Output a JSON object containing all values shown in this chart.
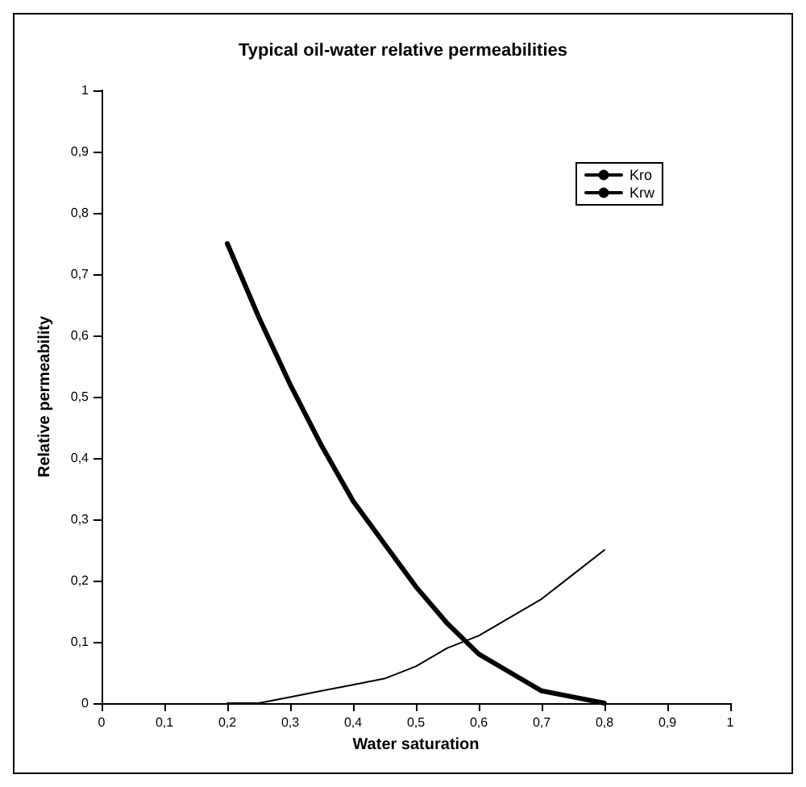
{
  "chart_data": {
    "type": "line",
    "title": "Typical oil-water relative permeabilities",
    "xlabel": "Water saturation",
    "ylabel": "Relative permeability",
    "x": [
      0.2,
      0.25,
      0.3,
      0.35,
      0.4,
      0.45,
      0.5,
      0.55,
      0.6,
      0.65,
      0.7,
      0.75,
      0.8
    ],
    "series": [
      {
        "name": "Kro",
        "color": "#000000",
        "values": [
          0.75,
          0.63,
          0.52,
          0.42,
          0.33,
          0.26,
          0.19,
          0.13,
          0.08,
          0.05,
          0.02,
          0.01,
          0
        ]
      },
      {
        "name": "Krw",
        "color": "#000000",
        "values": [
          0,
          0,
          0.01,
          0.02,
          0.03,
          0.04,
          0.06,
          0.09,
          0.11,
          0.14,
          0.17,
          0.21,
          0.25
        ]
      }
    ],
    "xlim": [
      0,
      1
    ],
    "ylim": [
      0,
      1
    ],
    "xticks": [
      0,
      {
        "value": 0.1,
        "label": "0,1"
      },
      {
        "value": 0.2,
        "label": "0,2"
      },
      {
        "value": 0.3,
        "label": "0,3"
      },
      {
        "value": 0.4,
        "label": "0,4"
      },
      {
        "value": 0.5,
        "label": "0,5"
      },
      {
        "value": 0.6,
        "label": "0,6"
      },
      {
        "value": 0.7,
        "label": "0,7"
      },
      {
        "value": 0.8,
        "label": "0,8"
      },
      {
        "value": 0.9,
        "label": "0,9"
      },
      1
    ],
    "yticks": [
      0,
      {
        "value": 0.1,
        "label": "0,1"
      },
      {
        "value": 0.2,
        "label": "0,2"
      },
      {
        "value": 0.3,
        "label": "0,3"
      },
      {
        "value": 0.4,
        "label": "0,4"
      },
      {
        "value": 0.5,
        "label": "0,5"
      },
      {
        "value": 0.6,
        "label": "0,6"
      },
      {
        "value": 0.7,
        "label": "0,7"
      },
      {
        "value": 0.8,
        "label": "0,8"
      },
      {
        "value": 0.9,
        "label": "0,9"
      },
      1
    ],
    "grid": false,
    "legend": "top right",
    "marker": "none",
    "line_style": "solid"
  }
}
